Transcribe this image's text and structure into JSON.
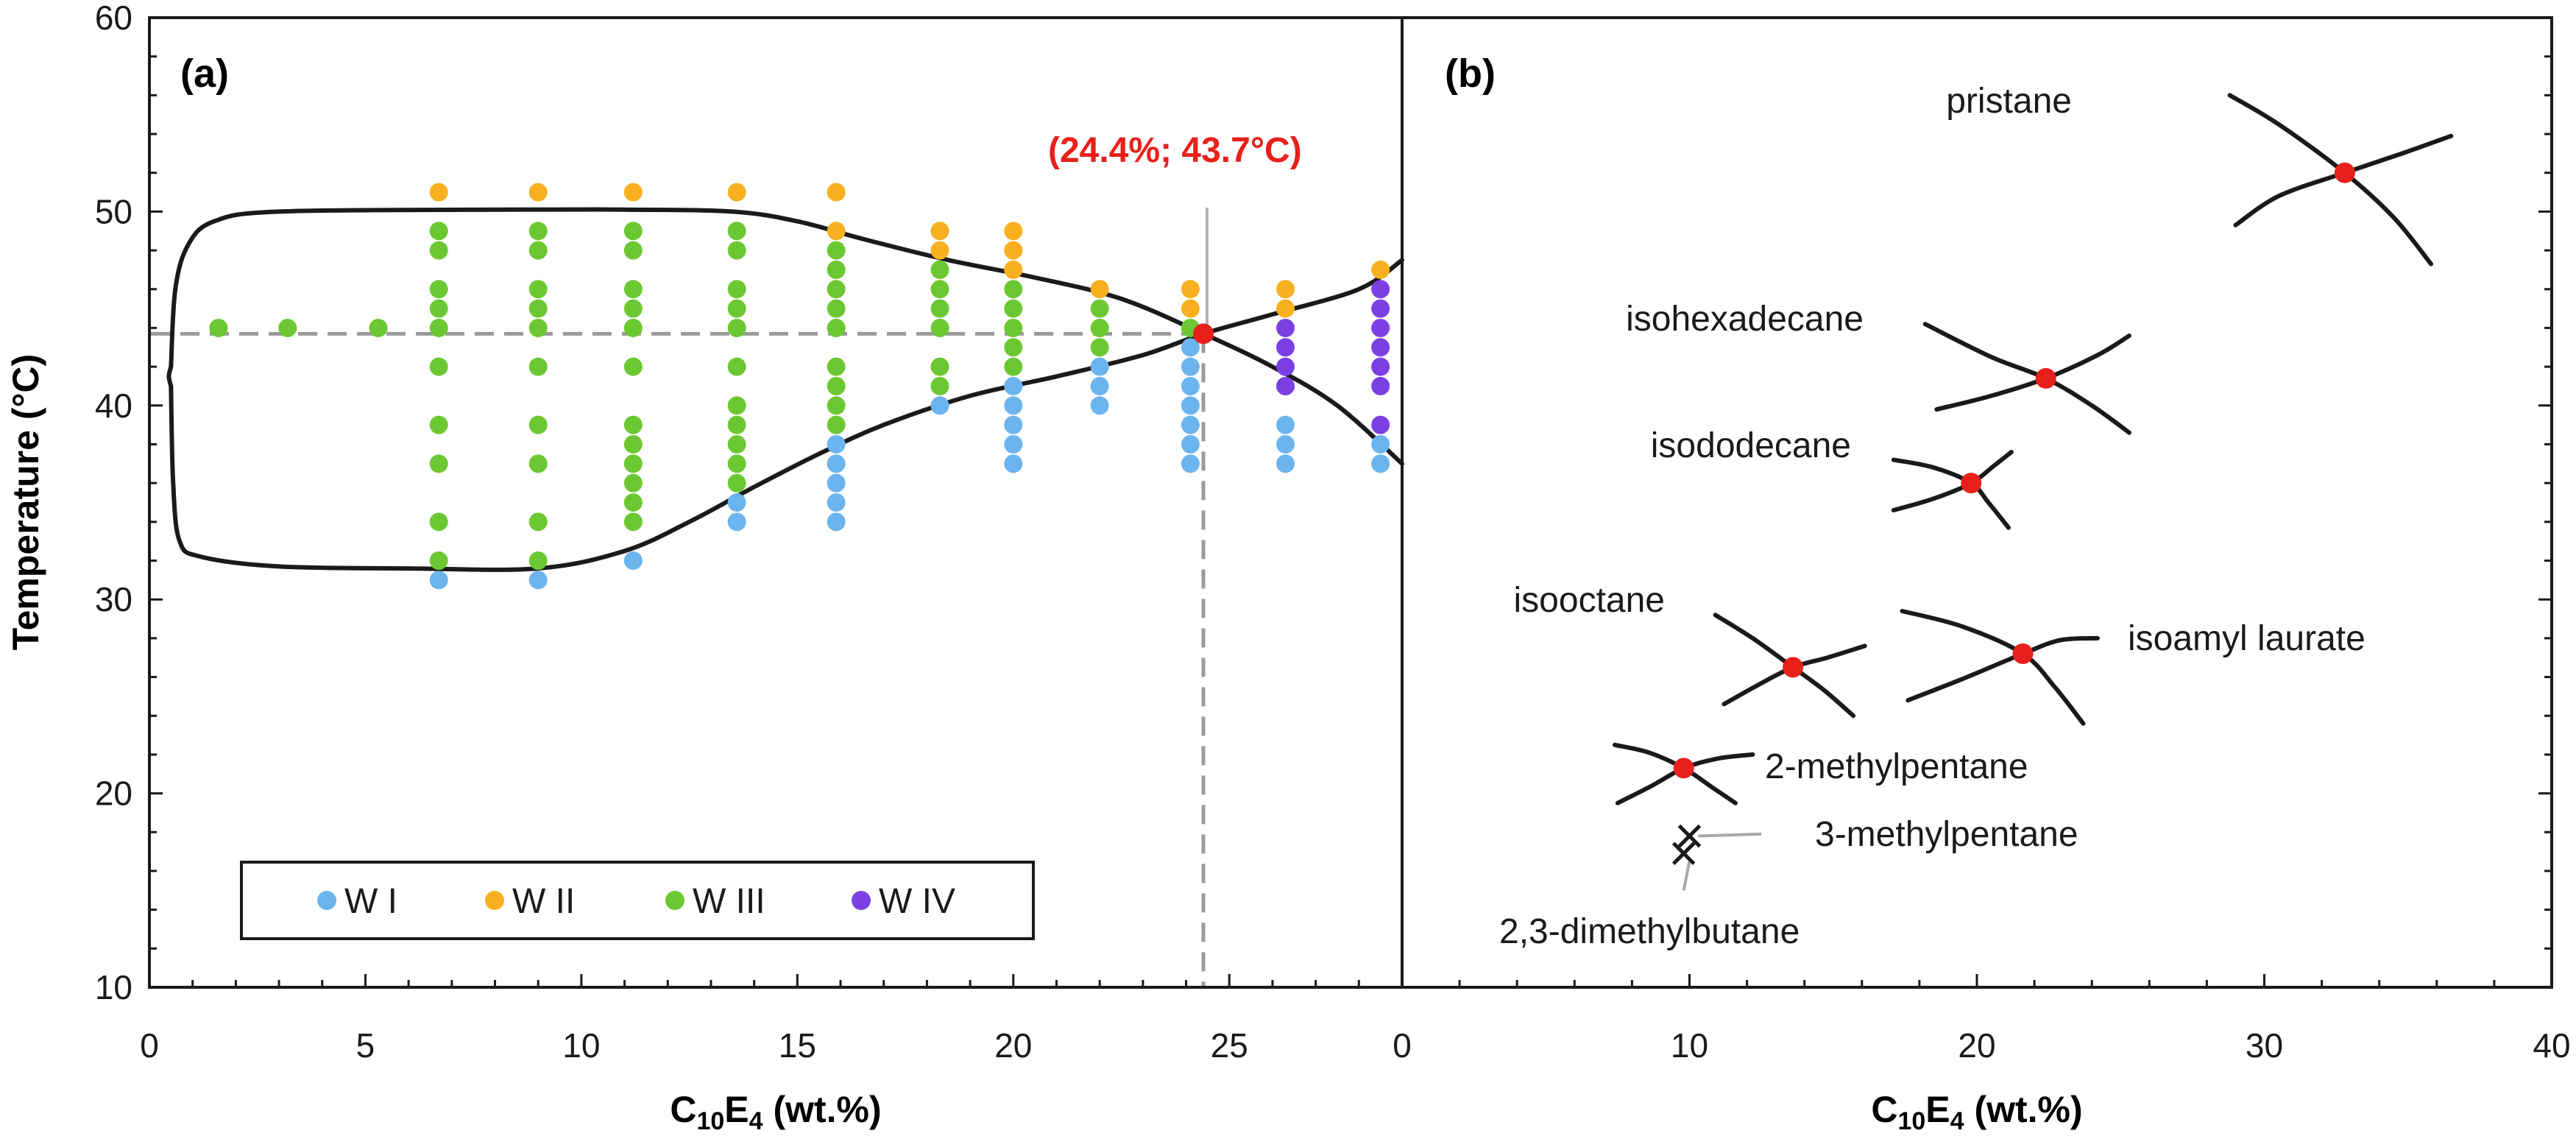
{
  "chart_data": [
    {
      "panel": "(a)",
      "type": "scatter",
      "xlabel": "C10E4 (wt.%)",
      "xlabel_parts": {
        "prefix": "C",
        "sub1": "10",
        "mid": "E",
        "sub2": "4",
        "suffix": " (wt.%)"
      },
      "ylabel": "Temperature (°C)",
      "xlim": [
        0,
        29
      ],
      "ylim": [
        10,
        60
      ],
      "xticks": [
        0,
        5,
        10,
        15,
        20,
        25
      ],
      "yticks": [
        10,
        20,
        30,
        40,
        50,
        60
      ],
      "critical_point": {
        "x": 24.4,
        "y": 43.7,
        "label": "(24.4%; 43.7°C)"
      },
      "colors": {
        "W I": "#6cb4ee",
        "W II": "#f8b020",
        "W III": "#6cc832",
        "W IV": "#7b3fe4",
        "critical": "#e8201b",
        "boundary": "#1a1a1a",
        "dashed": "#9a9a9a"
      },
      "legend": [
        "W I",
        "W II",
        "W III",
        "W IV"
      ],
      "legend_position": "bottom-left",
      "boundary_upper": [
        [
          0.5,
          42
        ],
        [
          0.6,
          46
        ],
        [
          0.9,
          48.3
        ],
        [
          1.5,
          49.5
        ],
        [
          3,
          50
        ],
        [
          8,
          50.1
        ],
        [
          11,
          50.1
        ],
        [
          13.5,
          50
        ],
        [
          15,
          49.5
        ],
        [
          16.5,
          48.6
        ],
        [
          18.5,
          47.5
        ],
        [
          20.5,
          46.6
        ],
        [
          22.5,
          45.5
        ],
        [
          24.4,
          43.7
        ],
        [
          26,
          42
        ],
        [
          27.5,
          40
        ],
        [
          29,
          37
        ]
      ],
      "boundary_lower": [
        [
          0.5,
          41
        ],
        [
          0.55,
          36
        ],
        [
          0.7,
          33
        ],
        [
          1.2,
          32.2
        ],
        [
          3,
          31.7
        ],
        [
          6,
          31.6
        ],
        [
          9,
          31.6
        ],
        [
          11,
          32.5
        ],
        [
          12.5,
          34
        ],
        [
          14,
          35.8
        ],
        [
          15.5,
          37.5
        ],
        [
          17,
          39
        ],
        [
          19,
          40.5
        ],
        [
          21,
          41.5
        ],
        [
          23,
          42.6
        ],
        [
          24.4,
          43.7
        ],
        [
          26,
          44.7
        ],
        [
          28,
          46
        ],
        [
          29,
          47.5
        ]
      ],
      "series": [
        {
          "name": "W I",
          "points": [
            [
              6.7,
              31
            ],
            [
              9,
              31
            ],
            [
              11.2,
              32
            ],
            [
              13.6,
              34
            ],
            [
              13.6,
              35
            ],
            [
              15.9,
              34
            ],
            [
              15.9,
              35
            ],
            [
              15.9,
              36
            ],
            [
              15.9,
              37
            ],
            [
              15.9,
              38
            ],
            [
              18.3,
              40
            ],
            [
              20,
              37
            ],
            [
              20,
              38
            ],
            [
              20,
              39
            ],
            [
              20,
              40
            ],
            [
              20,
              41
            ],
            [
              22,
              40
            ],
            [
              22,
              41
            ],
            [
              22,
              42
            ],
            [
              24.1,
              37
            ],
            [
              24.1,
              38
            ],
            [
              24.1,
              39
            ],
            [
              24.1,
              40
            ],
            [
              24.1,
              41
            ],
            [
              24.1,
              42
            ],
            [
              24.1,
              43
            ],
            [
              26.3,
              37
            ],
            [
              26.3,
              38
            ],
            [
              26.3,
              39
            ],
            [
              26.3,
              41
            ],
            [
              28.5,
              37
            ],
            [
              28.5,
              38
            ]
          ]
        },
        {
          "name": "W II",
          "points": [
            [
              6.7,
              51
            ],
            [
              9,
              51
            ],
            [
              11.2,
              51
            ],
            [
              13.6,
              51
            ],
            [
              15.9,
              51
            ],
            [
              15.9,
              49
            ],
            [
              18.3,
              49
            ],
            [
              18.3,
              48
            ],
            [
              20,
              49
            ],
            [
              20,
              48
            ],
            [
              20,
              47
            ],
            [
              22,
              46
            ],
            [
              24.1,
              46
            ],
            [
              24.1,
              45
            ],
            [
              26.3,
              46
            ],
            [
              26.3,
              45
            ],
            [
              28.5,
              47
            ]
          ]
        },
        {
          "name": "W III",
          "points": [
            [
              1.6,
              44
            ],
            [
              3.2,
              44
            ],
            [
              5.3,
              44
            ],
            [
              6.7,
              49
            ],
            [
              6.7,
              48
            ],
            [
              6.7,
              46
            ],
            [
              6.7,
              45
            ],
            [
              6.7,
              44
            ],
            [
              6.7,
              42
            ],
            [
              6.7,
              39
            ],
            [
              6.7,
              37
            ],
            [
              6.7,
              34
            ],
            [
              6.7,
              32
            ],
            [
              9,
              49
            ],
            [
              9,
              48
            ],
            [
              9,
              46
            ],
            [
              9,
              45
            ],
            [
              9,
              44
            ],
            [
              9,
              42
            ],
            [
              9,
              39
            ],
            [
              9,
              37
            ],
            [
              9,
              34
            ],
            [
              9,
              32
            ],
            [
              11.2,
              49
            ],
            [
              11.2,
              48
            ],
            [
              11.2,
              46
            ],
            [
              11.2,
              45
            ],
            [
              11.2,
              44
            ],
            [
              11.2,
              42
            ],
            [
              11.2,
              39
            ],
            [
              11.2,
              38
            ],
            [
              11.2,
              37
            ],
            [
              11.2,
              36
            ],
            [
              11.2,
              35
            ],
            [
              11.2,
              34
            ],
            [
              13.6,
              49
            ],
            [
              13.6,
              48
            ],
            [
              13.6,
              46
            ],
            [
              13.6,
              45
            ],
            [
              13.6,
              44
            ],
            [
              13.6,
              42
            ],
            [
              13.6,
              40
            ],
            [
              13.6,
              39
            ],
            [
              13.6,
              38
            ],
            [
              13.6,
              37
            ],
            [
              13.6,
              36
            ],
            [
              15.9,
              48
            ],
            [
              15.9,
              47
            ],
            [
              15.9,
              46
            ],
            [
              15.9,
              45
            ],
            [
              15.9,
              44
            ],
            [
              15.9,
              42
            ],
            [
              15.9,
              41
            ],
            [
              15.9,
              40
            ],
            [
              15.9,
              39
            ],
            [
              18.3,
              47
            ],
            [
              18.3,
              46
            ],
            [
              18.3,
              45
            ],
            [
              18.3,
              44
            ],
            [
              18.3,
              42
            ],
            [
              18.3,
              41
            ],
            [
              20,
              46
            ],
            [
              20,
              45
            ],
            [
              20,
              44
            ],
            [
              20,
              43
            ],
            [
              20,
              42
            ],
            [
              22,
              45
            ],
            [
              22,
              44
            ],
            [
              22,
              43
            ],
            [
              24.1,
              44
            ]
          ]
        },
        {
          "name": "W IV",
          "points": [
            [
              26.3,
              44
            ],
            [
              26.3,
              43
            ],
            [
              26.3,
              42
            ],
            [
              26.3,
              41
            ],
            [
              28.5,
              46
            ],
            [
              28.5,
              45
            ],
            [
              28.5,
              44
            ],
            [
              28.5,
              43
            ],
            [
              28.5,
              42
            ],
            [
              28.5,
              41
            ],
            [
              28.5,
              39
            ]
          ]
        }
      ]
    },
    {
      "panel": "(b)",
      "type": "scatter",
      "xlabel": "C10E4 (wt.%)",
      "xlabel_parts": {
        "prefix": "C",
        "sub1": "10",
        "mid": "E",
        "sub2": "4",
        "suffix": " (wt.%)"
      },
      "xlim": [
        0,
        40
      ],
      "ylim": [
        10,
        60
      ],
      "xticks": [
        0,
        10,
        20,
        30,
        40
      ],
      "points": [
        {
          "name": "pristane",
          "x": 32.8,
          "y": 52,
          "marker": "critical",
          "label_side": "left",
          "curves": [
            [
              [
                28.8,
                56
              ],
              [
                30.5,
                54.5
              ],
              [
                32.8,
                52
              ],
              [
                34.5,
                49.7
              ],
              [
                35.8,
                47.3
              ]
            ],
            [
              [
                29,
                49.3
              ],
              [
                30.5,
                50.8
              ],
              [
                32.8,
                52
              ],
              [
                34.8,
                53
              ],
              [
                36.5,
                53.9
              ]
            ]
          ]
        },
        {
          "name": "isohexadecane",
          "x": 22.4,
          "y": 41.4,
          "marker": "critical",
          "label_side": "left",
          "curves": [
            [
              [
                18.2,
                44.2
              ],
              [
                20.5,
                42.5
              ],
              [
                22.4,
                41.4
              ],
              [
                24,
                40
              ],
              [
                25.3,
                38.6
              ]
            ],
            [
              [
                18.6,
                39.8
              ],
              [
                20.5,
                40.5
              ],
              [
                22.4,
                41.4
              ],
              [
                24.2,
                42.6
              ],
              [
                25.3,
                43.6
              ]
            ]
          ]
        },
        {
          "name": "isododecane",
          "x": 19.8,
          "y": 36,
          "marker": "critical",
          "label_side": "left",
          "curves": [
            [
              [
                17.1,
                37.2
              ],
              [
                18.5,
                36.8
              ],
              [
                19.8,
                36
              ],
              [
                20.4,
                35
              ],
              [
                21.1,
                33.7
              ]
            ],
            [
              [
                17.1,
                34.6
              ],
              [
                18.5,
                35.2
              ],
              [
                19.8,
                36
              ],
              [
                20.6,
                36.9
              ],
              [
                21.2,
                37.6
              ]
            ]
          ]
        },
        {
          "name": "isooctane",
          "x": 13.6,
          "y": 26.5,
          "marker": "critical",
          "label_side": "left",
          "curves": [
            [
              [
                10.9,
                29.2
              ],
              [
                12.2,
                28
              ],
              [
                13.6,
                26.5
              ],
              [
                14.7,
                25.3
              ],
              [
                15.7,
                24
              ]
            ],
            [
              [
                11.2,
                24.6
              ],
              [
                12.4,
                25.6
              ],
              [
                13.6,
                26.5
              ],
              [
                14.8,
                27
              ],
              [
                16.1,
                27.6
              ]
            ]
          ]
        },
        {
          "name": "isoamyl laurate",
          "x": 21.6,
          "y": 27.2,
          "marker": "critical",
          "label_side": "right",
          "curves": [
            [
              [
                17.4,
                29.4
              ],
              [
                19.5,
                28.6
              ],
              [
                21.6,
                27.2
              ],
              [
                22.7,
                25.5
              ],
              [
                23.7,
                23.6
              ]
            ],
            [
              [
                17.6,
                24.8
              ],
              [
                19.5,
                25.9
              ],
              [
                21.6,
                27.2
              ],
              [
                22.9,
                27.9
              ],
              [
                24.2,
                28
              ]
            ]
          ]
        },
        {
          "name": "2-methylpentane",
          "x": 9.8,
          "y": 21.3,
          "marker": "critical",
          "label_side": "right",
          "curves": [
            [
              [
                7.4,
                22.5
              ],
              [
                8.6,
                22.1
              ],
              [
                9.8,
                21.3
              ],
              [
                10.8,
                20.3
              ],
              [
                11.6,
                19.5
              ]
            ],
            [
              [
                7.5,
                19.5
              ],
              [
                8.7,
                20.4
              ],
              [
                9.8,
                21.3
              ],
              [
                11,
                21.8
              ],
              [
                12.2,
                22
              ]
            ]
          ]
        },
        {
          "name": "3-methylpentane",
          "x": 10.0,
          "y": 17.8,
          "marker": "cross",
          "label_side": "right",
          "leader": [
            [
              10.3,
              17.8
            ],
            [
              12.5,
              17.9
            ]
          ]
        },
        {
          "name": "2,3-dimethylbutane",
          "x": 9.8,
          "y": 16.9,
          "marker": "cross",
          "label_side": "below",
          "leader": [
            [
              10.0,
              16.5
            ],
            [
              9.8,
              15
            ]
          ]
        }
      ]
    }
  ]
}
